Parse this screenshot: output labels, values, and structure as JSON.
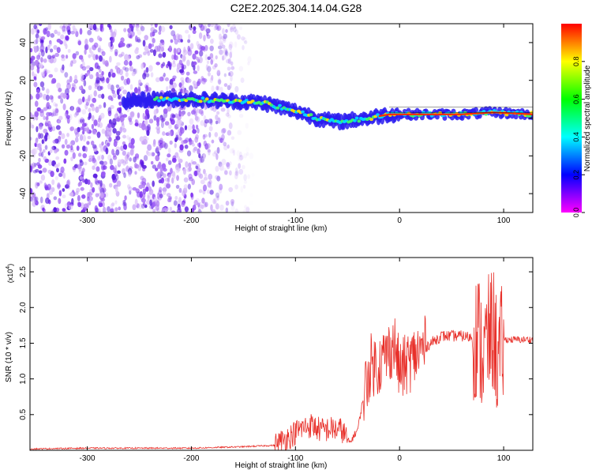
{
  "title": "C2E2.2025.304.14.04.G28",
  "colors": {
    "snr_line": "#e8302a",
    "signal_core": "#ff2a00",
    "noise": "#7b2ef0",
    "axis": "#000000"
  },
  "chart_data": [
    {
      "type": "heatmap",
      "xlabel": "Height of straight line (km)",
      "ylabel": "Frequency (Hz)",
      "xlim": [
        -355,
        128
      ],
      "ylim": [
        -50,
        50
      ],
      "x_ticks": [
        -300,
        -200,
        -100,
        0,
        100
      ],
      "y_ticks": [
        -40,
        -20,
        0,
        20,
        40
      ],
      "colorbar": {
        "label": "Normalized spectral amplitude",
        "range": [
          0.0,
          1.0
        ],
        "ticks": [
          "0.0",
          "0.2",
          "0.4",
          "0.6",
          "0.8"
        ],
        "colormap": [
          "#ff00ff",
          "#0000ff",
          "#00ffff",
          "#00ff00",
          "#ffff00",
          "#ff0000"
        ]
      },
      "signal_track": {
        "x": [
          -265,
          -230,
          -200,
          -160,
          -130,
          -110,
          -95,
          -80,
          -60,
          -45,
          -30,
          -10,
          20,
          60,
          90,
          128
        ],
        "y": [
          9,
          10,
          10,
          9,
          8,
          5,
          3,
          0,
          -2,
          -1,
          0,
          2,
          2,
          2,
          3,
          2
        ]
      },
      "noise_region_x": [
        -355,
        -140
      ]
    },
    {
      "type": "line",
      "xlabel": "Height of straight line (km)",
      "ylabel": "SNR (10 * v/v)",
      "y_multiplier": "(x10",
      "y_multiplier_exp": "4",
      "xlim": [
        -355,
        128
      ],
      "ylim": [
        0,
        2.7
      ],
      "x_ticks": [
        -300,
        -200,
        -100,
        0,
        100
      ],
      "y_ticks": [
        0.5,
        1.0,
        1.5,
        2.0,
        2.5
      ],
      "series": [
        {
          "x": [
            -355,
            -300,
            -250,
            -200,
            -150,
            -120,
            -105,
            -95,
            -85,
            -75,
            -65,
            -55,
            -48,
            -40,
            -34,
            -28,
            -20,
            -12,
            -5,
            0,
            10,
            20,
            30,
            40,
            50,
            60,
            70,
            76,
            80,
            85,
            90,
            95,
            100,
            110,
            128
          ],
          "y": [
            0.02,
            0.03,
            0.03,
            0.03,
            0.05,
            0.07,
            0.2,
            0.3,
            0.35,
            0.28,
            0.3,
            0.28,
            0.1,
            0.3,
            0.8,
            1.2,
            1.2,
            1.35,
            1.5,
            1.1,
            1.25,
            1.4,
            1.5,
            1.6,
            1.6,
            1.6,
            1.58,
            1.6,
            1.3,
            1.55,
            1.7,
            1.2,
            1.55,
            1.55,
            1.55
          ]
        }
      ]
    }
  ]
}
